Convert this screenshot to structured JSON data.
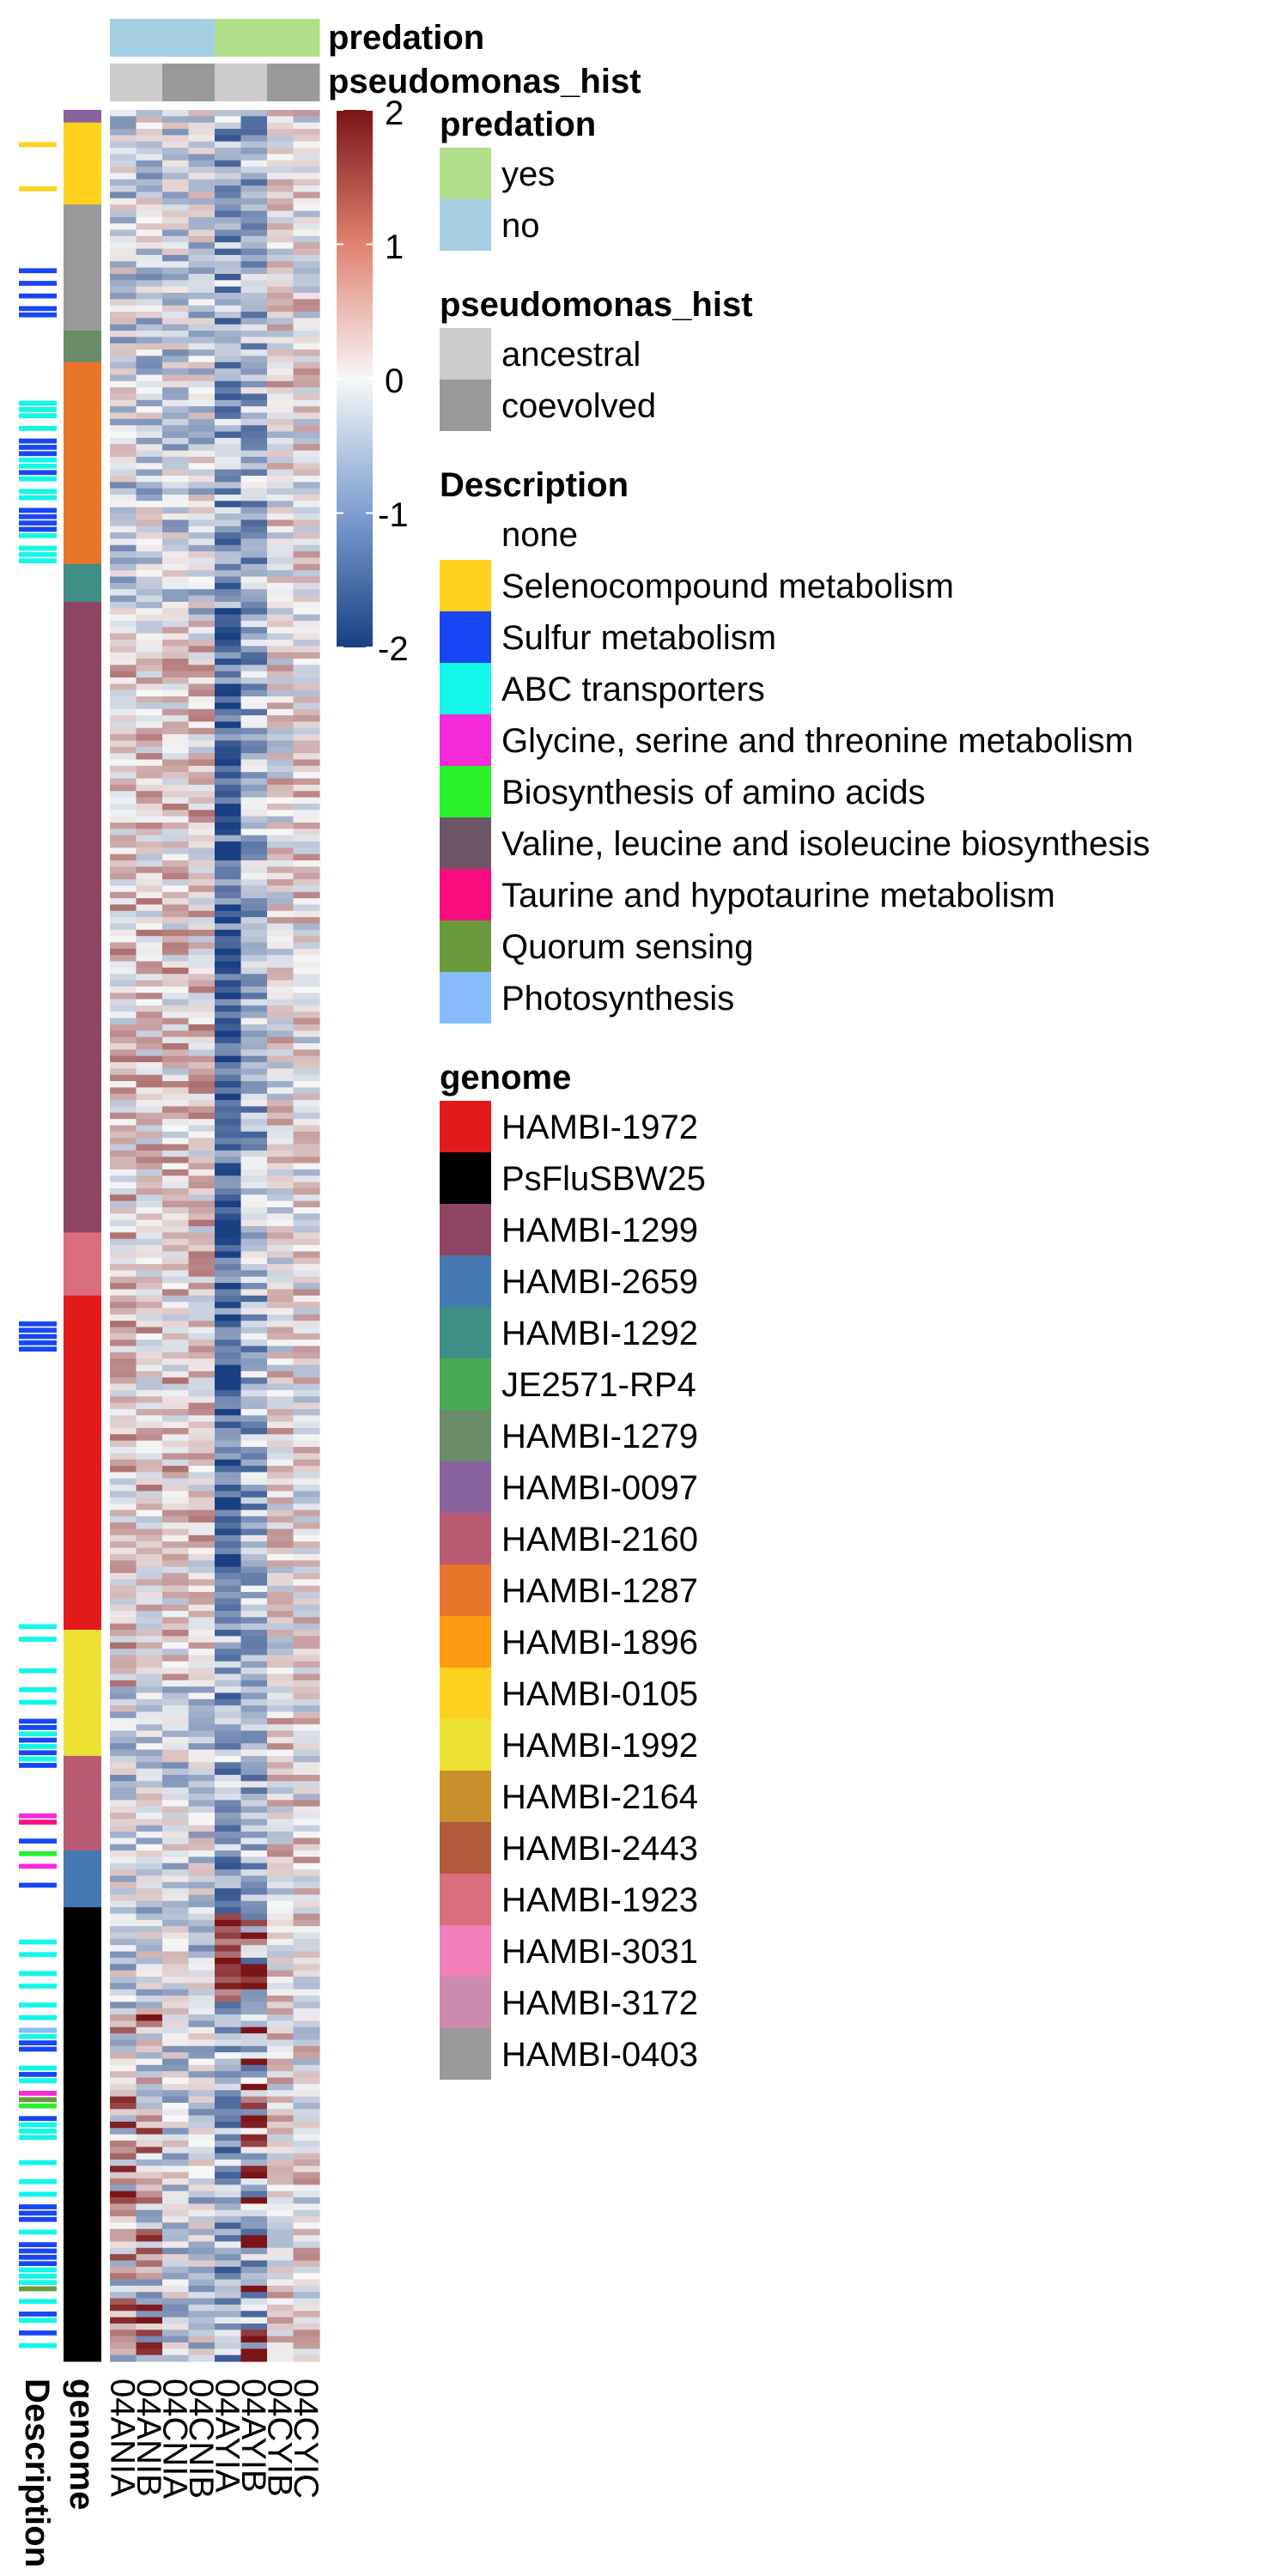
{
  "chart_data": {
    "type": "heatmap",
    "columns": [
      "04ANIA",
      "04ANIB",
      "04CNIA",
      "04CNIB",
      "04AYIA",
      "04AYIB",
      "04CYIB",
      "04CYIC"
    ],
    "column_annotations": {
      "predation": [
        "no",
        "no",
        "no",
        "no",
        "yes",
        "yes",
        "yes",
        "yes"
      ],
      "pseudomonas_hist": [
        "ancestral",
        "ancestral",
        "coevolved",
        "coevolved",
        "ancestral",
        "ancestral",
        "coevolved",
        "coevolved"
      ]
    },
    "row_annotation_labels": [
      "genome",
      "Description"
    ],
    "genome_blocks": [
      {
        "genome": "HAMBI-0097",
        "start": 0,
        "end": 2
      },
      {
        "genome": "HAMBI-0105",
        "start": 2,
        "end": 15
      },
      {
        "genome": "HAMBI-0403",
        "start": 15,
        "end": 35
      },
      {
        "genome": "HAMBI-1279",
        "start": 35,
        "end": 40
      },
      {
        "genome": "HAMBI-1287",
        "start": 40,
        "end": 72
      },
      {
        "genome": "HAMBI-1292",
        "start": 72,
        "end": 78
      },
      {
        "genome": "HAMBI-1299",
        "start": 78,
        "end": 178
      },
      {
        "genome": "HAMBI-1923",
        "start": 178,
        "end": 188
      },
      {
        "genome": "HAMBI-1972",
        "start": 188,
        "end": 241
      },
      {
        "genome": "HAMBI-1992",
        "start": 241,
        "end": 261
      },
      {
        "genome": "HAMBI-2160",
        "start": 261,
        "end": 276
      },
      {
        "genome": "HAMBI-2659",
        "start": 276,
        "end": 285
      },
      {
        "genome": "PsFluSBW25",
        "start": 285,
        "end": 357
      }
    ],
    "description_marks": [
      {
        "d": "Selenocompound metabolism",
        "rows": [
          5,
          12
        ]
      },
      {
        "d": "Sulfur metabolism",
        "rows": [
          25,
          27,
          29,
          31,
          32,
          52,
          53,
          54,
          57,
          63,
          64,
          65,
          66,
          192,
          193,
          194,
          195,
          196,
          255,
          256,
          258,
          260,
          262,
          274,
          281,
          306,
          307,
          311,
          318,
          332,
          333,
          334,
          338,
          339,
          340,
          341,
          349,
          352
        ]
      },
      {
        "d": "ABC transporters",
        "rows": [
          46,
          47,
          48,
          50,
          55,
          56,
          58,
          60,
          61,
          67,
          69,
          70,
          71,
          240,
          242,
          247,
          250,
          252,
          257,
          259,
          261,
          290,
          292,
          295,
          297,
          300,
          302,
          304,
          305,
          310,
          312,
          319,
          320,
          321,
          325,
          328,
          330,
          336,
          342,
          343,
          344,
          347,
          350,
          354
        ]
      },
      {
        "d": "Glycine, serine and threonine metabolism",
        "rows": [
          270,
          278,
          314
        ]
      },
      {
        "d": "Biosynthesis of amino acids",
        "rows": [
          276,
          316
        ]
      },
      {
        "d": "Quorum sensing",
        "rows": [
          315,
          345
        ]
      },
      {
        "d": "Taurine and hypotaurine metabolism",
        "rows": [
          271
        ]
      },
      {
        "d": "Photosynthesis",
        "rows": [
          304
        ]
      }
    ],
    "n_rows": 357,
    "color_scale": {
      "min": -2,
      "max": 2,
      "ticks": [
        2,
        1,
        0,
        -1,
        -2
      ],
      "low": "#1a3f82",
      "mid": "#f7f7f7",
      "high": "#7b1416"
    }
  },
  "legends": {
    "predation": {
      "title": "predation",
      "items": [
        {
          "label": "yes",
          "color": "#b2df8a"
        },
        {
          "label": "no",
          "color": "#a6cee3"
        }
      ]
    },
    "pseudomonas_hist": {
      "title": "pseudomonas_hist",
      "items": [
        {
          "label": "ancestral",
          "color": "#cccccc"
        },
        {
          "label": "coevolved",
          "color": "#999999"
        }
      ]
    },
    "description": {
      "title": "Description",
      "items": [
        {
          "label": "none",
          "color": "#ffffff"
        },
        {
          "label": "Selenocompound metabolism",
          "color": "#fdd21c"
        },
        {
          "label": "Sulfur metabolism",
          "color": "#1846f5"
        },
        {
          "label": "ABC transporters",
          "color": "#12f7e8"
        },
        {
          "label": "Glycine, serine and threonine metabolism",
          "color": "#f52ad8"
        },
        {
          "label": "Biosynthesis of amino acids",
          "color": "#2bf12b"
        },
        {
          "label": "Valine, leucine and isoleucine biosynthesis",
          "color": "#6c5566"
        },
        {
          "label": "Taurine and hypotaurine metabolism",
          "color": "#fb0c7f"
        },
        {
          "label": "Quorum sensing",
          "color": "#6b9a3c"
        },
        {
          "label": "Photosynthesis",
          "color": "#86bcfd"
        }
      ]
    },
    "genome": {
      "title": "genome",
      "items": [
        {
          "label": "HAMBI-1972",
          "color": "#e31a1c"
        },
        {
          "label": "PsFluSBW25",
          "color": "#000000"
        },
        {
          "label": "HAMBI-1299",
          "color": "#8e4463"
        },
        {
          "label": "HAMBI-2659",
          "color": "#4479b1"
        },
        {
          "label": "HAMBI-1292",
          "color": "#3e8f86"
        },
        {
          "label": "JE2571-RP4",
          "color": "#48a956"
        },
        {
          "label": "HAMBI-1279",
          "color": "#6a8c68"
        },
        {
          "label": "HAMBI-0097",
          "color": "#88629f"
        },
        {
          "label": "HAMBI-2160",
          "color": "#b95c73"
        },
        {
          "label": "HAMBI-1287",
          "color": "#e8752a"
        },
        {
          "label": "HAMBI-1896",
          "color": "#fd9b13"
        },
        {
          "label": "HAMBI-0105",
          "color": "#fdd21c"
        },
        {
          "label": "HAMBI-1992",
          "color": "#ede233"
        },
        {
          "label": "HAMBI-2164",
          "color": "#c8902d"
        },
        {
          "label": "HAMBI-2443",
          "color": "#b25a3a"
        },
        {
          "label": "HAMBI-1923",
          "color": "#d96e7c"
        },
        {
          "label": "HAMBI-3031",
          "color": "#f17fba"
        },
        {
          "label": "HAMBI-3172",
          "color": "#cc8aae"
        },
        {
          "label": "HAMBI-0403",
          "color": "#999999"
        }
      ]
    }
  }
}
